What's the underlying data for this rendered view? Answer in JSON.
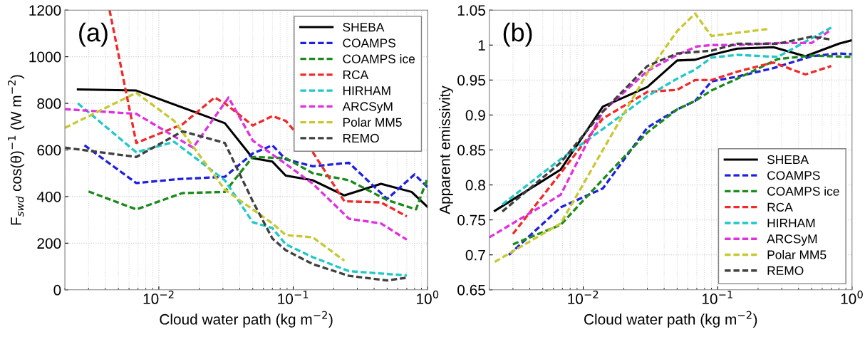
{
  "chart_data": [
    {
      "type": "line",
      "ylabel": "F$_{swd}$ cos(θ)$^{−1}$ (W m$^{−2}$)",
      "xlabel": "Cloud water path (kg m$^{−2}$)",
      "annotations": [
        "(a)"
      ],
      "log": "x",
      "grid": true,
      "legend": "top right",
      "xlim": [
        0.002,
        1
      ],
      "xticks": [
        {
          "value": 0.01,
          "label": "10$^{−2}$"
        },
        {
          "value": 0.1,
          "label": "10$^{−1}$"
        },
        {
          "value": 1,
          "label": "10$^{0}$"
        }
      ],
      "ylim": [
        0,
        1200
      ],
      "yticks": [
        0,
        200,
        400,
        600,
        800,
        1000,
        1200
      ],
      "series": [
        {
          "name": "SHEBA",
          "color": "#000000",
          "line_style": "solid",
          "x": [
            0.0025,
            0.0068,
            0.031,
            0.05,
            0.07,
            0.088,
            0.14,
            0.24,
            0.45,
            0.76,
            1.0
          ],
          "values": [
            860,
            855,
            715,
            565,
            550,
            490,
            470,
            405,
            455,
            420,
            355
          ]
        },
        {
          "name": "COAMPS",
          "color": "#1f1fe0",
          "line_style": "dashed",
          "x": [
            0.0028,
            0.0068,
            0.014,
            0.031,
            0.05,
            0.07,
            0.088,
            0.14,
            0.26,
            0.5,
            0.8,
            1.0
          ],
          "values": [
            620,
            458,
            475,
            485,
            585,
            620,
            560,
            530,
            545,
            390,
            495,
            440
          ]
        },
        {
          "name": "COAMPS ice",
          "color": "#1a8a1a",
          "line_style": "dashed",
          "x": [
            0.003,
            0.0068,
            0.015,
            0.031,
            0.05,
            0.088,
            0.14,
            0.26,
            0.5,
            0.82,
            1.0
          ],
          "values": [
            422,
            345,
            415,
            420,
            570,
            565,
            500,
            470,
            385,
            345,
            480
          ]
        },
        {
          "name": "RCA",
          "color": "#f02a2a",
          "line_style": "dashed",
          "x": [
            0.0043,
            0.0068,
            0.015,
            0.026,
            0.031,
            0.05,
            0.07,
            0.088,
            0.14,
            0.24,
            0.45,
            0.7
          ],
          "values": [
            1200,
            630,
            710,
            825,
            800,
            705,
            745,
            725,
            590,
            380,
            375,
            315
          ]
        },
        {
          "name": "HIRHAM",
          "color": "#20c8c8",
          "line_style": "dashed",
          "x": [
            0.0025,
            0.0068,
            0.013,
            0.031,
            0.05,
            0.07,
            0.088,
            0.14,
            0.26,
            0.7
          ],
          "values": [
            800,
            590,
            635,
            470,
            290,
            265,
            195,
            140,
            80,
            62
          ]
        },
        {
          "name": "ARCSyM",
          "color": "#e030e0",
          "line_style": "dashed",
          "x": [
            0.002,
            0.0068,
            0.018,
            0.033,
            0.05,
            0.088,
            0.14,
            0.26,
            0.45,
            0.7
          ],
          "values": [
            775,
            755,
            610,
            825,
            640,
            540,
            455,
            305,
            285,
            215
          ]
        },
        {
          "name": "Polar MM5",
          "color": "#c8c832",
          "line_style": "dashed",
          "x": [
            0.002,
            0.0068,
            0.013,
            0.031,
            0.07,
            0.088,
            0.14,
            0.24
          ],
          "values": [
            695,
            845,
            725,
            430,
            285,
            235,
            225,
            125
          ]
        },
        {
          "name": "REMO",
          "color": "#404040",
          "line_style": "dashed",
          "x": [
            0.002,
            0.0068,
            0.015,
            0.031,
            0.05,
            0.07,
            0.088,
            0.14,
            0.26,
            0.5,
            0.7
          ],
          "values": [
            610,
            570,
            680,
            630,
            380,
            220,
            170,
            110,
            60,
            40,
            52
          ]
        }
      ]
    },
    {
      "type": "line",
      "ylabel": "Apparent emissivity",
      "xlabel": "Cloud water path (kg m$^{−2}$)",
      "annotations": [
        "(b)"
      ],
      "log": "x",
      "grid": true,
      "legend": "bottom right",
      "xlim": [
        0.002,
        1
      ],
      "xticks": [
        {
          "value": 0.01,
          "label": "10$^{−2}$"
        },
        {
          "value": 0.1,
          "label": "10$^{−1}$"
        },
        {
          "value": 1,
          "label": "10$^{0}$"
        }
      ],
      "ylim": [
        0.65,
        1.05
      ],
      "yticks": [
        0.65,
        0.7,
        0.75,
        0.8,
        0.85,
        0.9,
        0.95,
        1,
        1.05
      ],
      "series": [
        {
          "name": "SHEBA",
          "color": "#000000",
          "line_style": "solid",
          "x": [
            0.0022,
            0.0068,
            0.014,
            0.03,
            0.05,
            0.068,
            0.09,
            0.14,
            0.26,
            0.45,
            0.8,
            1.0
          ],
          "values": [
            0.763,
            0.822,
            0.912,
            0.94,
            0.978,
            0.979,
            0.986,
            0.995,
            0.997,
            0.984,
            1.002,
            1.007
          ]
        },
        {
          "name": "COAMPS",
          "color": "#1f1fe0",
          "line_style": "dashed",
          "x": [
            0.0028,
            0.0068,
            0.014,
            0.03,
            0.05,
            0.068,
            0.09,
            0.14,
            0.26,
            0.5,
            0.8,
            1.0
          ],
          "values": [
            0.7,
            0.768,
            0.795,
            0.882,
            0.908,
            0.92,
            0.948,
            0.955,
            0.967,
            0.984,
            0.988,
            0.987
          ]
        },
        {
          "name": "COAMPS ice",
          "color": "#1a8a1a",
          "line_style": "dashed",
          "x": [
            0.003,
            0.0068,
            0.014,
            0.03,
            0.05,
            0.068,
            0.09,
            0.14,
            0.28,
            0.5,
            1.0
          ],
          "values": [
            0.715,
            0.743,
            0.808,
            0.875,
            0.908,
            0.92,
            0.935,
            0.952,
            0.98,
            0.985,
            0.983
          ]
        },
        {
          "name": "RCA",
          "color": "#f02a2a",
          "line_style": "dashed",
          "x": [
            0.003,
            0.0068,
            0.014,
            0.03,
            0.05,
            0.068,
            0.09,
            0.14,
            0.26,
            0.45,
            0.7
          ],
          "values": [
            0.73,
            0.817,
            0.895,
            0.933,
            0.936,
            0.95,
            0.95,
            0.962,
            0.975,
            0.958,
            0.97
          ]
        },
        {
          "name": "HIRHAM",
          "color": "#20c8c8",
          "line_style": "dashed",
          "x": [
            0.0025,
            0.0068,
            0.014,
            0.03,
            0.05,
            0.068,
            0.09,
            0.14,
            0.28,
            0.7
          ],
          "values": [
            0.772,
            0.837,
            0.88,
            0.927,
            0.952,
            0.965,
            0.982,
            0.986,
            0.983,
            1.025
          ]
        },
        {
          "name": "ARCSyM",
          "color": "#e030e0",
          "line_style": "dashed",
          "x": [
            0.002,
            0.0068,
            0.014,
            0.03,
            0.05,
            0.07,
            0.09,
            0.14,
            0.28,
            0.5,
            0.7
          ],
          "values": [
            0.725,
            0.786,
            0.905,
            0.963,
            0.986,
            0.998,
            1.0,
            1.0,
            1.003,
            1.003,
            1.022
          ]
        },
        {
          "name": "Polar MM5",
          "color": "#c8c832",
          "line_style": "dashed",
          "x": [
            0.0022,
            0.0068,
            0.014,
            0.03,
            0.05,
            0.068,
            0.09,
            0.24
          ],
          "values": [
            0.69,
            0.745,
            0.85,
            0.96,
            1.02,
            1.045,
            1.013,
            1.023
          ]
        },
        {
          "name": "REMO",
          "color": "#404040",
          "line_style": "dashed",
          "x": [
            0.0025,
            0.0068,
            0.014,
            0.03,
            0.05,
            0.09,
            0.14,
            0.28,
            0.5,
            0.7
          ],
          "values": [
            0.762,
            0.832,
            0.905,
            0.97,
            0.988,
            0.992,
            1.002,
            1.002,
            1.012,
            1.008
          ]
        }
      ]
    }
  ]
}
